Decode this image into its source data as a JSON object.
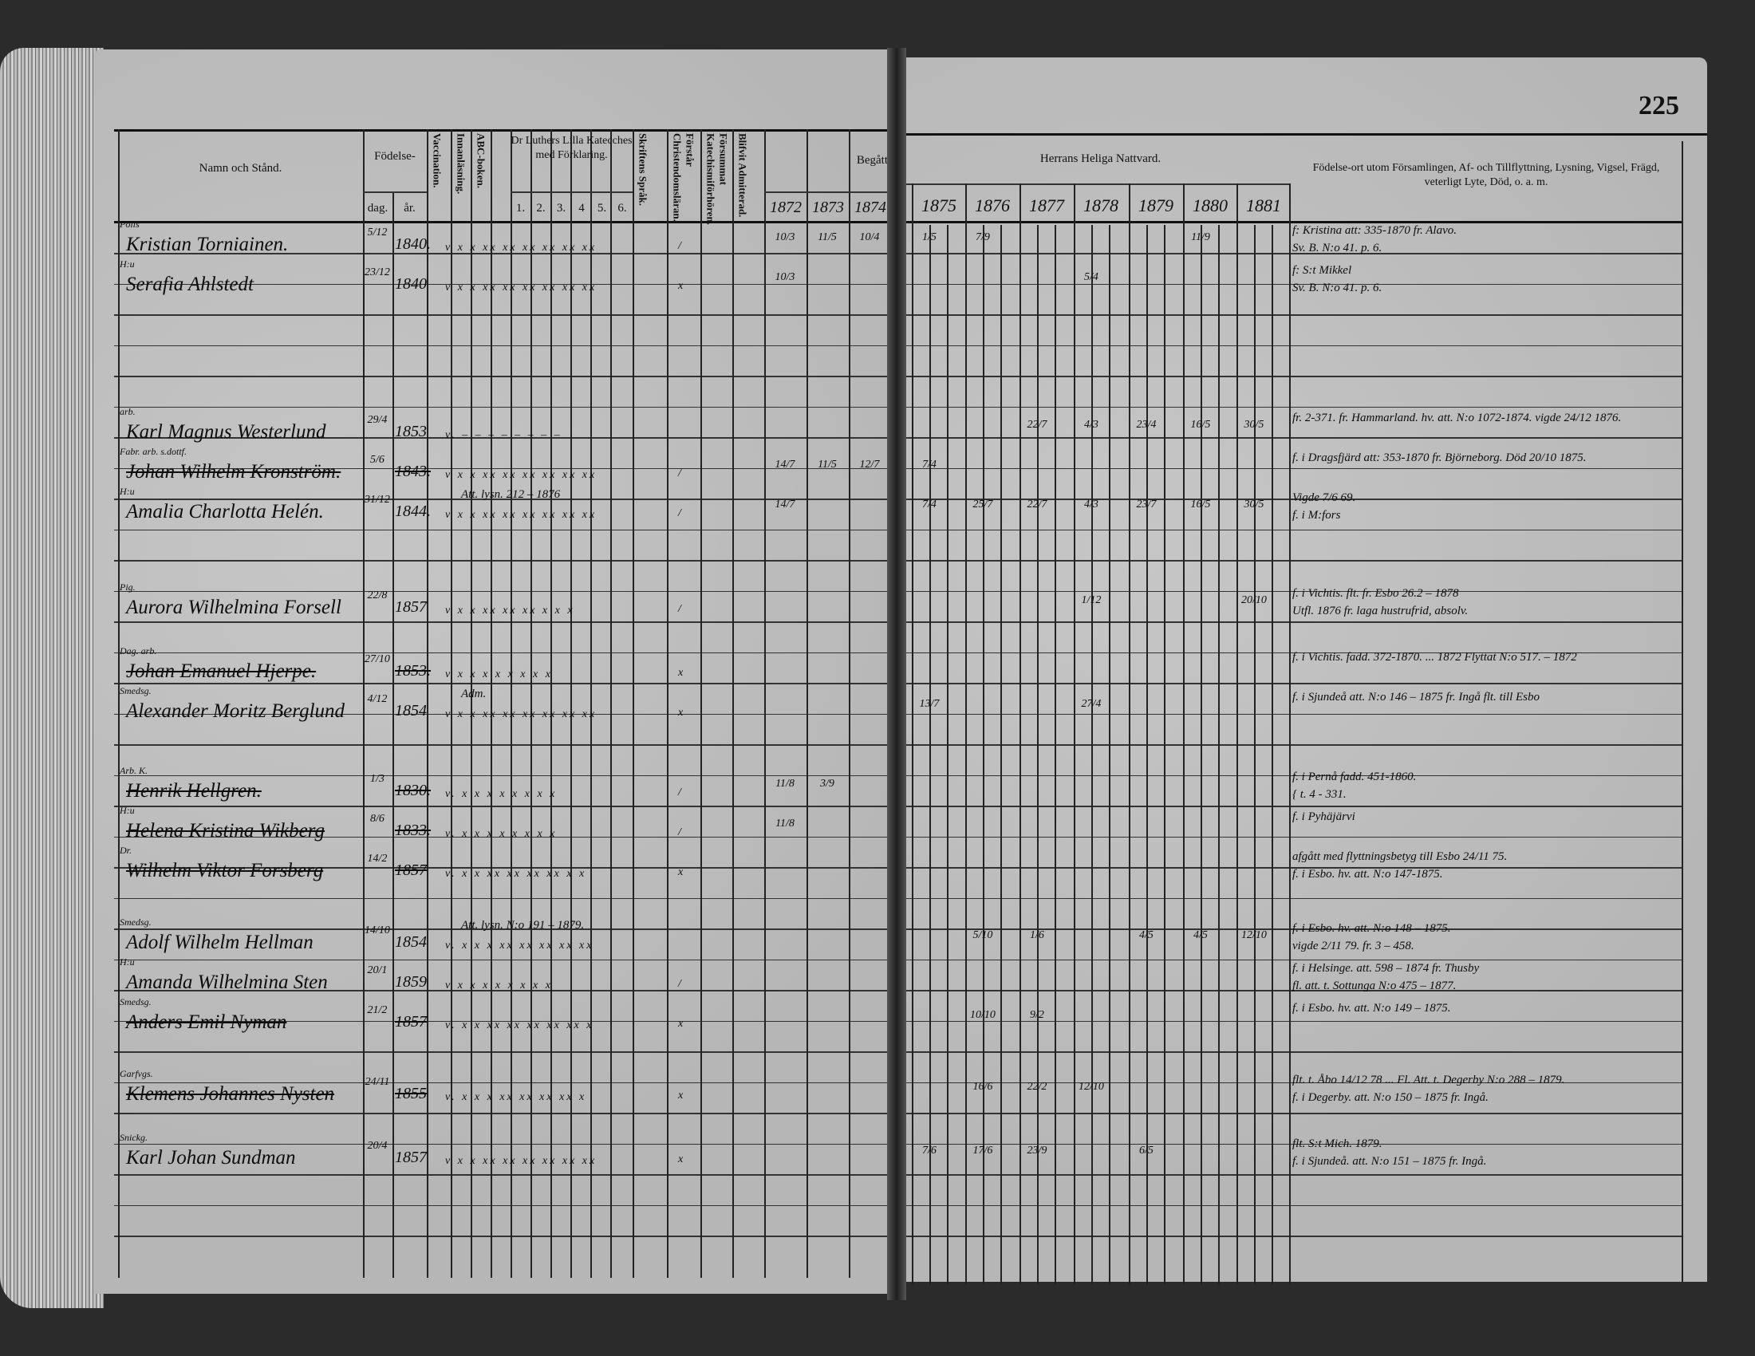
{
  "page_number": "225",
  "left_headers": {
    "name": "Namn och Stånd.",
    "birth": "Födelse-",
    "birth_day": "dag.",
    "birth_year": "år.",
    "vaccination": "Vaccination.",
    "reading": "Innanläsning.",
    "abc": "ABC-boken.",
    "catechism": "Dr Luthers Lilla Katecches med Förklaring.",
    "catechism_parts": [
      "1.",
      "2.",
      "3.",
      "4",
      "5.",
      "6."
    ],
    "scripture": "Skriftens Språk.",
    "christendom": "Förstår Christendomsläran.",
    "neglected": "Försummat Katechismiförhören.",
    "admitted": "Blifvit Admitterad.",
    "partaken": "Begått",
    "years": [
      "1872",
      "1873",
      "1874"
    ]
  },
  "right_headers": {
    "communion": "Herrans Heliga Nattvard.",
    "years": [
      "1875",
      "1876",
      "1877",
      "1878",
      "1879",
      "1880",
      "1881"
    ],
    "remarks": "Födelse-ort utom Församlingen, Af- och Tillflyttning, Lysning, Vigsel, Frägd, veterligt Lyte, Död, o. a. m."
  },
  "entries": [
    {
      "title": "Polis",
      "name": "Kristian Torniainen.",
      "day": "5/12",
      "year": "1840.",
      "struck": false,
      "marks": "v x x xx xx xx xx xx xx",
      "mark2": "/",
      "comm": [
        "10/3",
        "11/5",
        "10/4",
        "1/5",
        "7/9",
        "",
        "",
        "",
        "11/9",
        ""
      ],
      "notes": [
        "f: Kristina att: 335-1870 fr. Alavo.",
        "Sv. B. N:o 41. p. 6."
      ]
    },
    {
      "title": "H:u",
      "name": "Serafia Ahlstedt",
      "day": "23/12",
      "year": "1840",
      "struck": false,
      "marks": "v x x xx xx xx xx xx xx",
      "mark2": "x",
      "comm": [
        "10/3",
        "",
        "",
        "",
        "",
        "",
        "5/4",
        "",
        "",
        ""
      ],
      "notes": [
        "f: S:t Mikkel",
        "Sv. B. N:o 41. p. 6."
      ]
    },
    {
      "title": "arb.",
      "name": "Karl Magnus Westerlund",
      "day": "29/4",
      "year": "1853",
      "struck": false,
      "marks": "v. – – – – – – – –",
      "mark2": "",
      "comm": [
        "",
        "",
        "",
        "",
        "",
        "22/7",
        "4/3",
        "23/4",
        "16/5",
        "30/5"
      ],
      "notes": [
        "fr. 2-371. fr. Hammarland. hv. att. N:o 1072-1874. vigde 24/12 1876."
      ]
    },
    {
      "title": "Fabr. arb. s.dottf.",
      "name": "Johan Wilhelm Kronström.",
      "day": "5/6",
      "year": "1843.",
      "struck": true,
      "marks": "v x x xx xx xx xx xx xx",
      "mark2": "/",
      "comm": [
        "14/7",
        "11/5",
        "12/7",
        "7/4",
        "",
        "",
        "",
        "",
        "",
        ""
      ],
      "notes": [
        "f. i Dragsfjärd att: 353-1870 fr. Björneborg. Död 20/10 1875."
      ]
    },
    {
      "title": "H:u",
      "name": "Amalia Charlotta Helén.",
      "day": "31/12",
      "year": "1844.",
      "struck": false,
      "marks": "v x x xx xx xx xx xx xx",
      "mark2": "/",
      "comm": [
        "14/7",
        "",
        "",
        "7/4",
        "25/7",
        "22/7",
        "4/3",
        "23/7",
        "16/5",
        "30/5"
      ],
      "annot": "Att. lysn. 212 – 1876",
      "notes": [
        "Vigde 7/6 69.",
        "f. i M:fors"
      ]
    },
    {
      "title": "Pig.",
      "name": "Aurora Wilhelmina Forsell",
      "day": "22/8",
      "year": "1857",
      "struck": false,
      "marks": "v x x xx xx xx x x x",
      "mark2": "/",
      "comm": [
        "",
        "",
        "",
        "",
        "",
        "",
        "1/12",
        "",
        "",
        "20/10"
      ],
      "notes": [
        "f. i Vichtis. flt. fr. Esbo 26.2 – 1878",
        "Utfl. 1876 fr. laga hustrufrid, absolv."
      ]
    },
    {
      "title": "Dag. arb.",
      "name": "Johan Emanuel Hjerpe.",
      "day": "27/10",
      "year": "1853.",
      "struck": true,
      "marks": "v x x x x x x x x",
      "mark2": "x",
      "comm": [
        "",
        "",
        "",
        "",
        "",
        "",
        "",
        "",
        "",
        ""
      ],
      "notes": [
        "f. i Vichtis. fadd. 372-1870. ... 1872 Flyttat N:o 517. – 1872"
      ]
    },
    {
      "title": "Smedsg.",
      "name": "Alexander Moritz Berglund",
      "day": "4/12",
      "year": "1854",
      "struck": false,
      "marks": "v x x xx xx xx xx xx xx",
      "mark2": "x",
      "comm": [
        "",
        "",
        "",
        "13/7",
        "",
        "",
        "27/4",
        "",
        "",
        ""
      ],
      "annot": "Adm.",
      "notes": [
        "f. i Sjundeå att. N:o 146 – 1875 fr. Ingå flt. till Esbo"
      ]
    },
    {
      "title": "Arb. K.",
      "name": "Henrik Hellgren.",
      "day": "1/3",
      "year": "1830.",
      "struck": true,
      "marks": "v. x x x x x x x x",
      "mark2": "/",
      "comm": [
        "11/8",
        "3/9",
        "",
        "",
        "",
        "",
        "",
        "",
        "",
        ""
      ],
      "notes": [
        "f. i Pernå fadd. 451-1860.",
        "{ t. 4 - 331."
      ]
    },
    {
      "title": "H:u",
      "name": "Helena Kristina Wikberg",
      "day": "8/6",
      "year": "1833.",
      "struck": true,
      "marks": "v. x x x x x x x x",
      "mark2": "/",
      "comm": [
        "11/8",
        "",
        "",
        "",
        "",
        "",
        "",
        "",
        "",
        ""
      ],
      "notes": [
        "f. i Pyhäjärvi"
      ]
    },
    {
      "title": "Dr.",
      "name": "Wilhelm Viktor Forsberg",
      "day": "14/2",
      "year": "1857",
      "struck": true,
      "marks": "v. x x xx xx xx xx x x",
      "mark2": "x",
      "comm": [
        "",
        "",
        "",
        "",
        "",
        "",
        "",
        "",
        "",
        ""
      ],
      "notes": [
        "afgått med flyttningsbetyg till Esbo 24/11 75.",
        "f. i Esbo. hv. att. N:o 147-1875."
      ]
    },
    {
      "title": "Smedsg.",
      "name": "Adolf Wilhelm Hellman",
      "day": "14/10",
      "year": "1854",
      "struck": false,
      "marks": "v. x x x xx xx xx xx xx",
      "mark2": "",
      "comm": [
        "",
        "",
        "",
        "",
        "5/10",
        "1/6",
        "",
        "4/5",
        "4/5",
        "12/10"
      ],
      "annot": "Att. lysn. N:o 191 – 1879.",
      "notes": [
        "f. i Esbo. hv. att. N:o 148 – 1875.",
        "vigde 2/11 79. fr. 3 – 458."
      ]
    },
    {
      "title": "H:u",
      "name": "Amanda Wilhelmina Sten",
      "day": "20/1",
      "year": "1859",
      "struck": false,
      "marks": "v x x x x x x x x",
      "mark2": "/",
      "comm": [
        "",
        "",
        "",
        "",
        "",
        "",
        "",
        "",
        "",
        ""
      ],
      "notes": [
        "f. i Helsinge. att. 598 – 1874 fr. Thusby",
        "fl. att. t. Sottunga N:o 475 – 1877."
      ]
    },
    {
      "title": "Smedsg.",
      "name": "Anders Emil Nyman",
      "day": "21/2",
      "year": "1857",
      "struck": true,
      "marks": "v. x x xx xx xx xx xx x",
      "mark2": "x",
      "comm": [
        "",
        "",
        "",
        "",
        "10/10",
        "9/2",
        "",
        "",
        "",
        ""
      ],
      "notes": [
        "f. i Esbo. hv. att. N:o 149 – 1875."
      ]
    },
    {
      "title": "Garfvgs.",
      "name": "Klemens Johannes Nysten",
      "day": "24/11",
      "year": "1855",
      "struck": true,
      "marks": "v. x x x xx xx xx xx x",
      "mark2": "x",
      "comm": [
        "",
        "",
        "",
        "",
        "16/6",
        "22/2",
        "12/10",
        "",
        "",
        ""
      ],
      "notes": [
        "flt. t. Åbo 14/12 78 ... Fl. Att. t. Degerby N:o 288 – 1879.",
        "f. i Degerby. att. N:o 150 – 1875 fr. Ingå."
      ]
    },
    {
      "title": "Snickg.",
      "name": "Karl Johan Sundman",
      "day": "20/4",
      "year": "1857",
      "struck": false,
      "marks": "v x x xx xx xx xx xx xx",
      "mark2": "x",
      "comm": [
        "",
        "",
        "",
        "7/6",
        "17/6",
        "23/9",
        "",
        "6/5",
        "",
        ""
      ],
      "notes": [
        "flt. S:t Mich. 1879.",
        "f. i Sjundeå. att. N:o 151 – 1875 fr. Ingå."
      ]
    }
  ]
}
